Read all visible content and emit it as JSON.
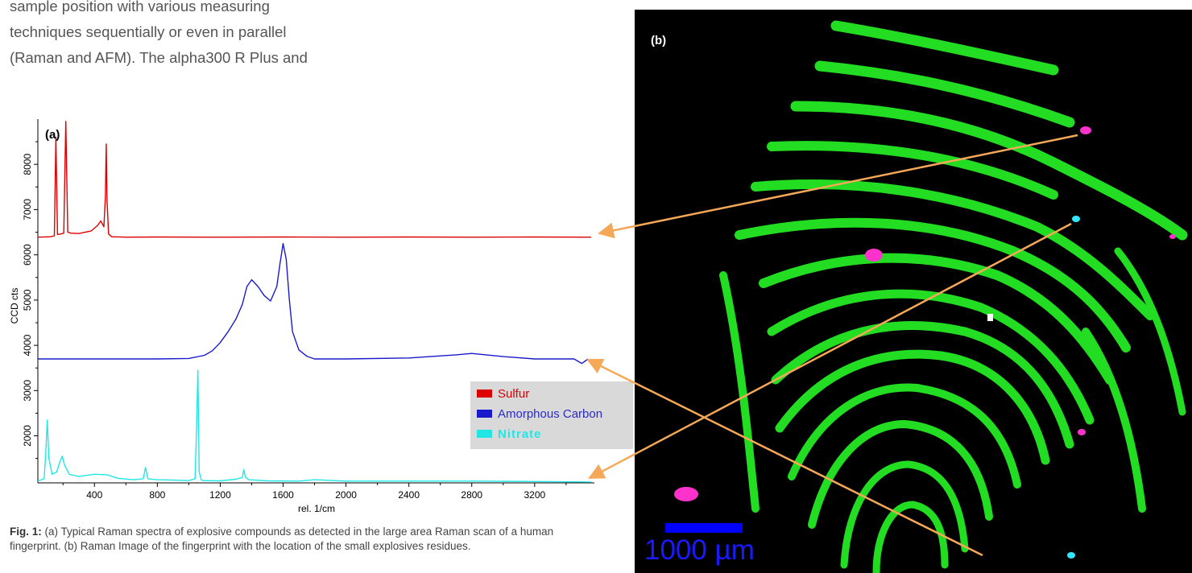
{
  "intro_lines": [
    "sample position with various measuring",
    "techniques sequentially or even in parallel",
    "(Raman and AFM). The alpha300 R Plus and"
  ],
  "figure_a": {
    "panel_label": "(a)",
    "chart_data": {
      "type": "line",
      "title": "",
      "xlabel": "rel. 1/cm",
      "ylabel": "CCD cts",
      "xlim": [
        40,
        3580
      ],
      "ylim": [
        960,
        9000
      ],
      "x_ticks": [
        400,
        800,
        1200,
        1600,
        2000,
        2400,
        2800,
        3200
      ],
      "y_ticks": [
        2000,
        3000,
        4000,
        5000,
        6000,
        7000,
        8000
      ],
      "legend_position": "lower-right",
      "series": [
        {
          "name": "Sulfur",
          "color": "#dd0000",
          "x": [
            40,
            120,
            145,
            155,
            165,
            185,
            205,
            218,
            230,
            250,
            300,
            380,
            420,
            440,
            460,
            470,
            475,
            480,
            490,
            510,
            600,
            800,
            1200,
            1600,
            2000,
            2400,
            2800,
            3200,
            3560
          ],
          "y": [
            6390,
            6400,
            6420,
            8600,
            6450,
            6460,
            6480,
            8950,
            6500,
            6480,
            6470,
            6530,
            6650,
            6750,
            6620,
            7300,
            8450,
            7200,
            6460,
            6400,
            6390,
            6395,
            6390,
            6395,
            6390,
            6395,
            6390,
            6395,
            6390
          ]
        },
        {
          "name": "Amorphous Carbon",
          "color": "#1a1acc",
          "x": [
            40,
            400,
            800,
            1000,
            1100,
            1150,
            1200,
            1250,
            1300,
            1340,
            1370,
            1400,
            1440,
            1480,
            1520,
            1560,
            1580,
            1600,
            1620,
            1640,
            1660,
            1700,
            1750,
            1800,
            2000,
            2400,
            2700,
            2800,
            3000,
            3200,
            3450,
            3500,
            3540
          ],
          "y": [
            3700,
            3700,
            3700,
            3710,
            3780,
            3880,
            4060,
            4300,
            4580,
            4900,
            5300,
            5450,
            5300,
            5100,
            4980,
            5300,
            5800,
            6250,
            5900,
            5000,
            4300,
            3900,
            3760,
            3700,
            3700,
            3720,
            3790,
            3820,
            3750,
            3700,
            3700,
            3600,
            3700
          ]
        },
        {
          "name": "Nitrate",
          "color": "#22e6e6",
          "x": [
            40,
            80,
            90,
            100,
            110,
            130,
            160,
            180,
            195,
            210,
            240,
            300,
            400,
            480,
            550,
            650,
            710,
            725,
            740,
            800,
            900,
            1000,
            1040,
            1050,
            1058,
            1066,
            1080,
            1100,
            1200,
            1300,
            1340,
            1350,
            1360,
            1380,
            1500,
            1700,
            1800,
            2000,
            2400,
            2800,
            3200,
            3560
          ],
          "y": [
            1000,
            1050,
            1600,
            2350,
            1500,
            1150,
            1200,
            1420,
            1550,
            1350,
            1150,
            1100,
            1150,
            1140,
            1060,
            1030,
            1050,
            1300,
            1050,
            1030,
            1020,
            1010,
            1050,
            2200,
            3450,
            1200,
            1020,
            1010,
            1005,
            1040,
            1080,
            1250,
            1090,
            1030,
            1005,
            1000,
            1030,
            1000,
            1000,
            1000,
            990,
            980
          ]
        }
      ]
    }
  },
  "figure_b": {
    "panel_label": "(b)",
    "scale_label": "1000 µm",
    "colors": {
      "ridge": "#22dd22",
      "sulfur_spot": "#ff33cc",
      "nitrate_spot": "#33e6ff",
      "background": "#000000",
      "scale_bar": "#0000ff"
    }
  },
  "connector_color": "#f5a857",
  "caption": {
    "bold": "Fig. 1:",
    "text": " (a) Typical Raman  spectra of explosive compounds as detected in the large area Raman scan of a human fingerprint. (b) Raman Image of the fingerprint with  the location of the small explosives residues."
  }
}
